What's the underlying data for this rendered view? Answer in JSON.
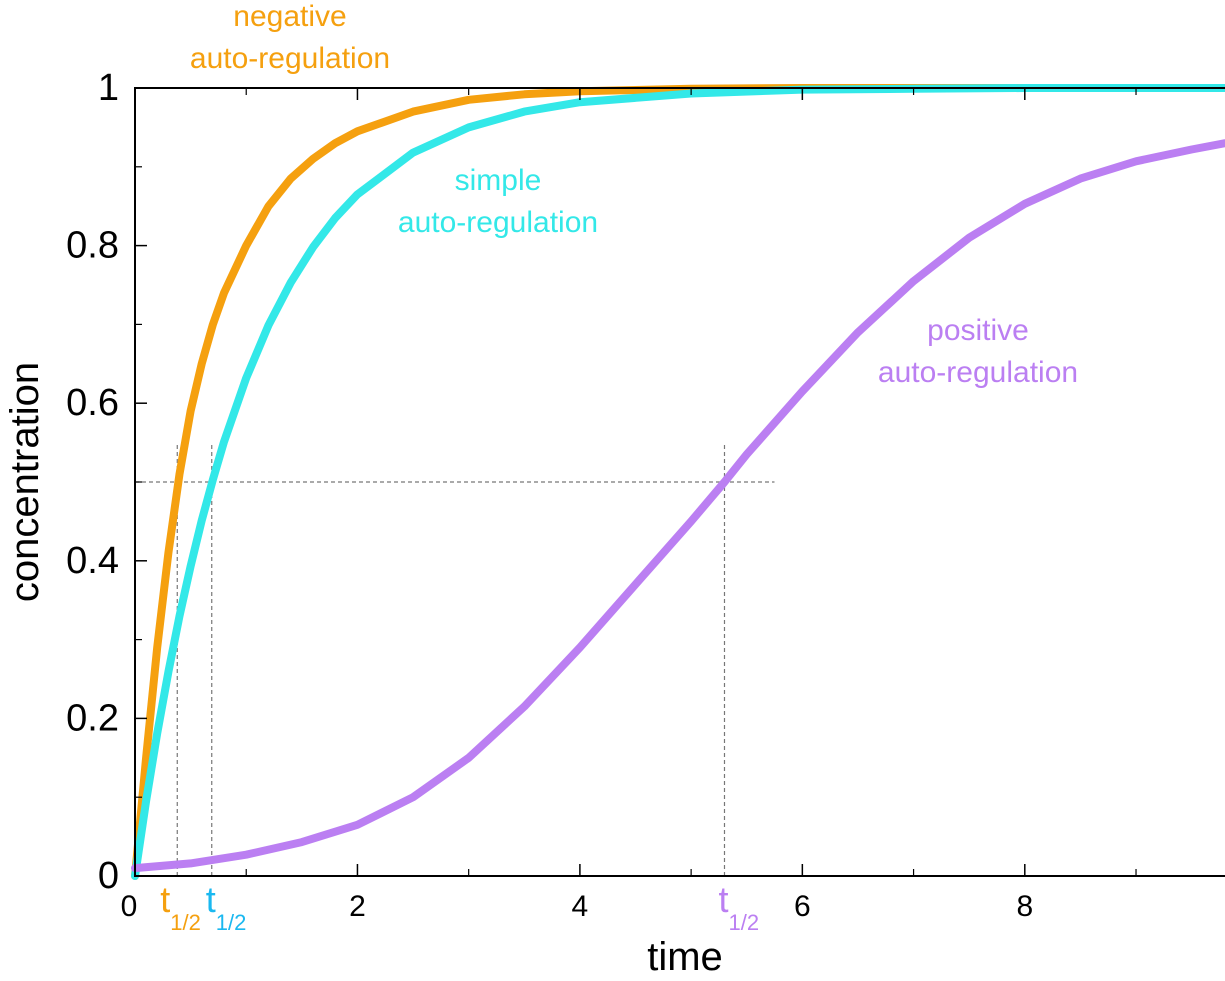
{
  "chart_data": {
    "type": "line",
    "xlabel": "time",
    "ylabel": "concentration",
    "xlim": [
      0,
      9.8
    ],
    "ylim": [
      0,
      1
    ],
    "x_ticks": [
      {
        "value": 0,
        "label": "0"
      },
      {
        "value": 2,
        "label": "2"
      },
      {
        "value": 4,
        "label": "4"
      },
      {
        "value": 6,
        "label": "6"
      },
      {
        "value": 8,
        "label": "8"
      }
    ],
    "y_ticks": [
      {
        "value": 0,
        "label": "0"
      },
      {
        "value": 0.2,
        "label": "0.2"
      },
      {
        "value": 0.4,
        "label": "0.4"
      },
      {
        "value": 0.6,
        "label": "0.6"
      },
      {
        "value": 0.8,
        "label": "0.8"
      },
      {
        "value": 1,
        "label": "1"
      }
    ],
    "grid": false,
    "series": [
      {
        "name": "negative auto-regulation",
        "label_lines": [
          "negative",
          "auto-regulation"
        ],
        "color": "#f5a00f",
        "t_half": 0.38,
        "x": [
          0,
          0.1,
          0.2,
          0.3,
          0.4,
          0.5,
          0.6,
          0.7,
          0.8,
          1.0,
          1.2,
          1.4,
          1.6,
          1.8,
          2.0,
          2.5,
          3.0,
          3.5,
          4.0,
          5.0,
          6.0,
          7.0,
          8.0,
          9.0,
          9.8
        ],
        "y": [
          0.0,
          0.15,
          0.29,
          0.41,
          0.51,
          0.59,
          0.65,
          0.7,
          0.74,
          0.8,
          0.85,
          0.885,
          0.91,
          0.93,
          0.945,
          0.97,
          0.985,
          0.992,
          0.996,
          0.999,
          1.0,
          1.0,
          1.0,
          1.0,
          1.0
        ]
      },
      {
        "name": "simple auto-regulation",
        "label_lines": [
          "simple",
          "auto-regulation"
        ],
        "color": "#33e8e8",
        "t_half": 0.69,
        "x": [
          0,
          0.1,
          0.2,
          0.3,
          0.4,
          0.5,
          0.6,
          0.7,
          0.8,
          1.0,
          1.2,
          1.4,
          1.6,
          1.8,
          2.0,
          2.5,
          3.0,
          3.5,
          4.0,
          5.0,
          6.0,
          7.0,
          8.0,
          9.0,
          9.8
        ],
        "y": [
          0.0,
          0.095,
          0.181,
          0.259,
          0.33,
          0.393,
          0.451,
          0.503,
          0.551,
          0.632,
          0.699,
          0.753,
          0.798,
          0.835,
          0.865,
          0.918,
          0.95,
          0.97,
          0.982,
          0.993,
          0.998,
          0.999,
          1.0,
          1.0,
          1.0
        ]
      },
      {
        "name": "positive auto-regulation",
        "label_lines": [
          "positive",
          "auto-regulation"
        ],
        "color": "#bb7ff2",
        "t_half": 5.3,
        "x": [
          0,
          0.5,
          1.0,
          1.5,
          2.0,
          2.5,
          3.0,
          3.5,
          4.0,
          4.5,
          5.0,
          5.3,
          5.5,
          6.0,
          6.5,
          7.0,
          7.5,
          8.0,
          8.5,
          9.0,
          9.5,
          9.8
        ],
        "y": [
          0.01,
          0.016,
          0.027,
          0.043,
          0.065,
          0.1,
          0.15,
          0.215,
          0.29,
          0.37,
          0.45,
          0.5,
          0.535,
          0.615,
          0.69,
          0.755,
          0.81,
          0.853,
          0.885,
          0.907,
          0.922,
          0.93
        ]
      }
    ],
    "half_level": 0.5,
    "t_half_label": {
      "main": "t",
      "sub": "1/2"
    }
  }
}
